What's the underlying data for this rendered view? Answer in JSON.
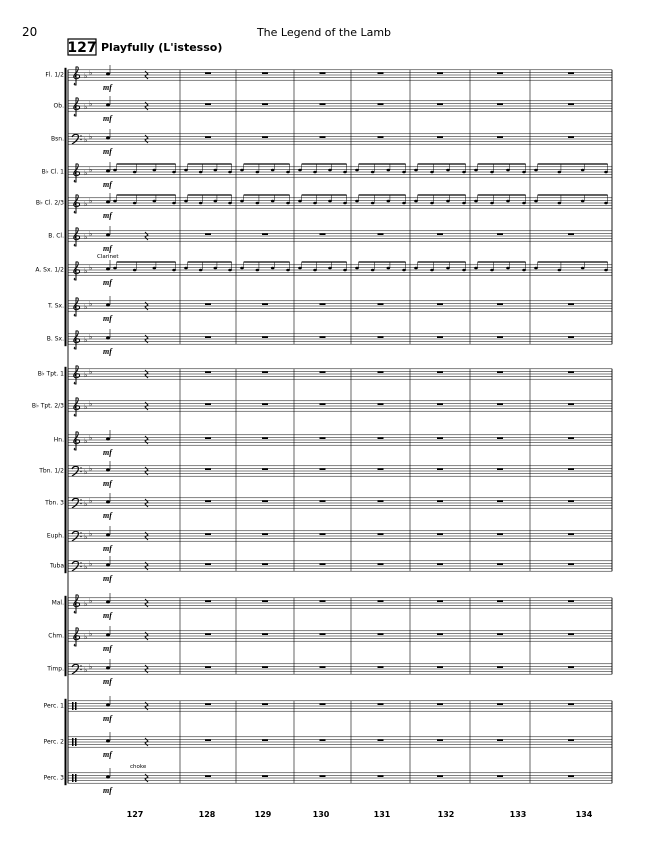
{
  "header": {
    "page_number": "20",
    "title": "The Legend of the Lamb"
  },
  "rehearsal": {
    "mark": "127",
    "tempo": "Playfully (L'istesso)"
  },
  "staves": [
    {
      "label": "Fl. 1/2",
      "dynamic": "mf",
      "clef": "treble"
    },
    {
      "label": "Ob.",
      "dynamic": "mf",
      "clef": "treble"
    },
    {
      "label": "Bsn.",
      "dynamic": "mf",
      "clef": "bass"
    },
    {
      "label": "B♭ Cl. 1",
      "dynamic": "mf",
      "clef": "treble"
    },
    {
      "label": "B♭ Cl. 2/3",
      "dynamic": "mf",
      "clef": "treble"
    },
    {
      "label": "B. Cl.",
      "dynamic": "mf",
      "clef": "treble"
    },
    {
      "label": "A. Sx. 1/2",
      "dynamic": "mf",
      "clef": "treble"
    },
    {
      "label": "T. Sx.",
      "dynamic": "mf",
      "clef": "treble"
    },
    {
      "label": "B. Sx.",
      "dynamic": "mf",
      "clef": "treble"
    },
    {
      "label": "B♭ Tpt. 1",
      "clef": "treble"
    },
    {
      "label": "B♭ Tpt. 2/3",
      "clef": "treble"
    },
    {
      "label": "Hn.",
      "dynamic": "mf",
      "clef": "treble"
    },
    {
      "label": "Tbn. 1/2",
      "dynamic": "mf",
      "clef": "bass"
    },
    {
      "label": "Tbn. 3",
      "dynamic": "mf",
      "clef": "bass"
    },
    {
      "label": "Euph.",
      "dynamic": "mf",
      "clef": "bass"
    },
    {
      "label": "Tuba",
      "dynamic": "mf",
      "clef": "bass"
    },
    {
      "label": "Mal.",
      "dynamic": "mf",
      "clef": "treble"
    },
    {
      "label": "Chm.",
      "dynamic": "mf",
      "clef": "treble"
    },
    {
      "label": "Timp.",
      "dynamic": "mf",
      "clef": "bass"
    },
    {
      "label": "Perc. 1",
      "dynamic": "mf",
      "clef": "perc"
    },
    {
      "label": "Perc. 2",
      "dynamic": "mf",
      "clef": "perc"
    },
    {
      "label": "Perc. 3",
      "dynamic": "mf",
      "clef": "perc"
    }
  ],
  "annotations": [
    "Clarinet",
    "choke"
  ],
  "measures": [
    127,
    128,
    129,
    130,
    131,
    132,
    133,
    134
  ]
}
